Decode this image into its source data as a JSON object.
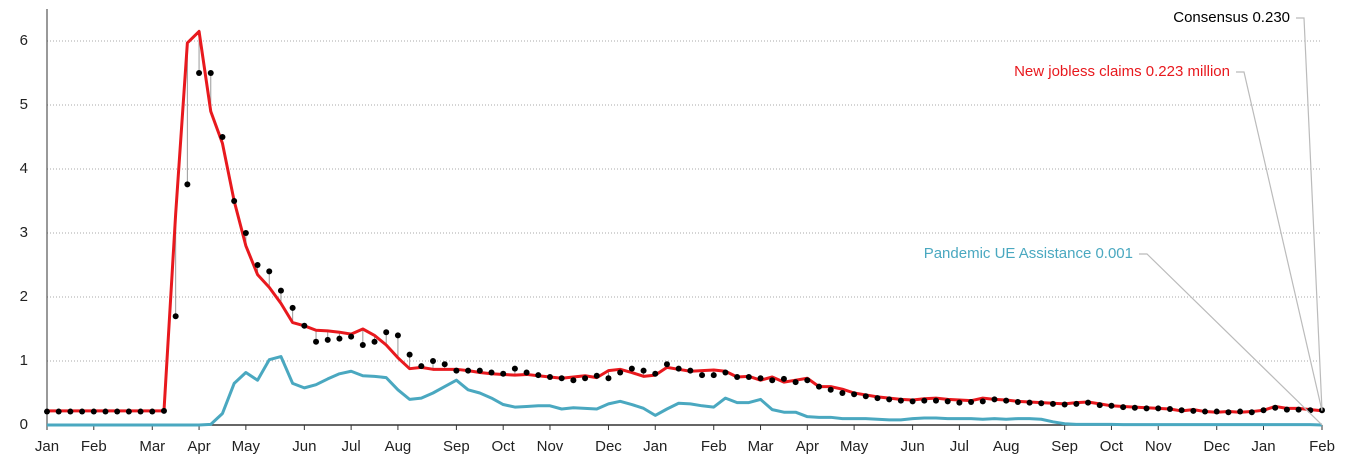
{
  "chart_data": {
    "type": "line",
    "categories": [
      "Jan",
      null,
      null,
      null,
      "Feb",
      null,
      null,
      null,
      null,
      "Mar",
      null,
      null,
      null,
      "Apr",
      null,
      null,
      null,
      "May",
      null,
      null,
      null,
      null,
      "Jun",
      null,
      null,
      null,
      "Jul",
      null,
      null,
      null,
      "Aug",
      null,
      null,
      null,
      null,
      "Sep",
      null,
      null,
      null,
      "Oct",
      null,
      null,
      null,
      "Nov",
      null,
      null,
      null,
      null,
      "Dec",
      null,
      null,
      null,
      "Jan",
      null,
      null,
      null,
      null,
      "Feb",
      null,
      null,
      null,
      "Mar",
      null,
      null,
      null,
      "Apr",
      null,
      null,
      null,
      "May",
      null,
      null,
      null,
      null,
      "Jun",
      null,
      null,
      null,
      "Jul",
      null,
      null,
      null,
      "Aug",
      null,
      null,
      null,
      null,
      "Sep",
      null,
      null,
      null,
      "Oct",
      null,
      null,
      null,
      "Nov",
      null,
      null,
      null,
      null,
      "Dec",
      null,
      null,
      null,
      "Jan",
      null,
      null,
      null,
      null,
      "Feb"
    ],
    "series": [
      {
        "name": "Pandemic UE Assistance 0.001",
        "color": "#4aa8c0",
        "style": "line",
        "values": [
          0,
          0,
          0,
          0,
          0,
          0,
          0,
          0,
          0,
          0,
          0,
          0,
          0,
          0,
          0.01,
          0.18,
          0.65,
          0.82,
          0.7,
          1.02,
          1.07,
          0.65,
          0.58,
          0.63,
          0.72,
          0.8,
          0.84,
          0.77,
          0.76,
          0.74,
          0.55,
          0.4,
          0.42,
          0.5,
          0.6,
          0.7,
          0.55,
          0.5,
          0.42,
          0.32,
          0.28,
          0.29,
          0.3,
          0.3,
          0.25,
          0.27,
          0.26,
          0.25,
          0.33,
          0.37,
          0.32,
          0.26,
          0.15,
          0.25,
          0.34,
          0.33,
          0.3,
          0.28,
          0.42,
          0.35,
          0.35,
          0.4,
          0.24,
          0.2,
          0.2,
          0.13,
          0.12,
          0.12,
          0.1,
          0.1,
          0.1,
          0.09,
          0.08,
          0.08,
          0.1,
          0.11,
          0.11,
          0.1,
          0.1,
          0.1,
          0.09,
          0.1,
          0.09,
          0.1,
          0.1,
          0.09,
          0.05,
          0.02,
          0.01,
          0.01,
          0.01,
          0.01,
          0.005,
          0.005,
          0.005,
          0.005,
          0.005,
          0.005,
          0.005,
          0.005,
          0.005,
          0.005,
          0.005,
          0.005,
          0.005,
          0.005,
          0.005,
          0.005,
          0.005,
          0.001
        ]
      },
      {
        "name": "New jobless claims 0.223 million",
        "color": "#e8191e",
        "style": "line",
        "values": [
          0.22,
          0.22,
          0.22,
          0.22,
          0.22,
          0.22,
          0.22,
          0.22,
          0.22,
          0.22,
          0.22,
          3.3,
          5.97,
          6.15,
          4.9,
          4.4,
          3.5,
          2.8,
          2.35,
          2.15,
          1.9,
          1.6,
          1.55,
          1.48,
          1.47,
          1.45,
          1.42,
          1.5,
          1.4,
          1.25,
          1.05,
          0.88,
          0.9,
          0.87,
          0.87,
          0.87,
          0.85,
          0.82,
          0.8,
          0.79,
          0.78,
          0.79,
          0.77,
          0.75,
          0.73,
          0.75,
          0.77,
          0.74,
          0.85,
          0.87,
          0.82,
          0.76,
          0.78,
          0.9,
          0.87,
          0.84,
          0.85,
          0.86,
          0.84,
          0.75,
          0.76,
          0.7,
          0.75,
          0.67,
          0.7,
          0.73,
          0.6,
          0.6,
          0.56,
          0.5,
          0.47,
          0.44,
          0.42,
          0.4,
          0.39,
          0.41,
          0.42,
          0.4,
          0.39,
          0.38,
          0.42,
          0.4,
          0.39,
          0.37,
          0.36,
          0.35,
          0.34,
          0.33,
          0.35,
          0.36,
          0.33,
          0.3,
          0.29,
          0.28,
          0.27,
          0.26,
          0.25,
          0.22,
          0.24,
          0.21,
          0.2,
          0.21,
          0.2,
          0.21,
          0.23,
          0.29,
          0.26,
          0.26,
          0.24,
          0.223
        ]
      },
      {
        "name": "Consensus 0.230",
        "color": "#000000",
        "style": "dots",
        "values": [
          0.21,
          0.21,
          0.21,
          0.21,
          0.21,
          0.21,
          0.21,
          0.21,
          0.21,
          0.21,
          0.22,
          1.7,
          3.76,
          5.5,
          5.5,
          4.5,
          3.5,
          3.0,
          2.5,
          2.4,
          2.1,
          1.83,
          1.55,
          1.3,
          1.33,
          1.35,
          1.38,
          1.25,
          1.3,
          1.45,
          1.4,
          1.1,
          0.92,
          1.0,
          0.95,
          0.85,
          0.85,
          0.85,
          0.82,
          0.8,
          0.88,
          0.82,
          0.78,
          0.75,
          0.73,
          0.7,
          0.73,
          0.77,
          0.73,
          0.82,
          0.88,
          0.85,
          0.8,
          0.95,
          0.88,
          0.85,
          0.78,
          0.78,
          0.82,
          0.75,
          0.75,
          0.73,
          0.7,
          0.72,
          0.67,
          0.7,
          0.6,
          0.55,
          0.5,
          0.48,
          0.45,
          0.42,
          0.4,
          0.38,
          0.37,
          0.38,
          0.38,
          0.37,
          0.35,
          0.36,
          0.37,
          0.4,
          0.38,
          0.36,
          0.35,
          0.34,
          0.33,
          0.32,
          0.33,
          0.35,
          0.31,
          0.3,
          0.28,
          0.27,
          0.26,
          0.26,
          0.25,
          0.23,
          0.22,
          0.21,
          0.21,
          0.2,
          0.21,
          0.2,
          0.23,
          0.27,
          0.24,
          0.24,
          0.23,
          0.23
        ]
      }
    ],
    "ylim": [
      0,
      6.5
    ],
    "yticks": [
      0,
      1,
      2,
      3,
      4,
      5,
      6
    ],
    "grid": true
  }
}
